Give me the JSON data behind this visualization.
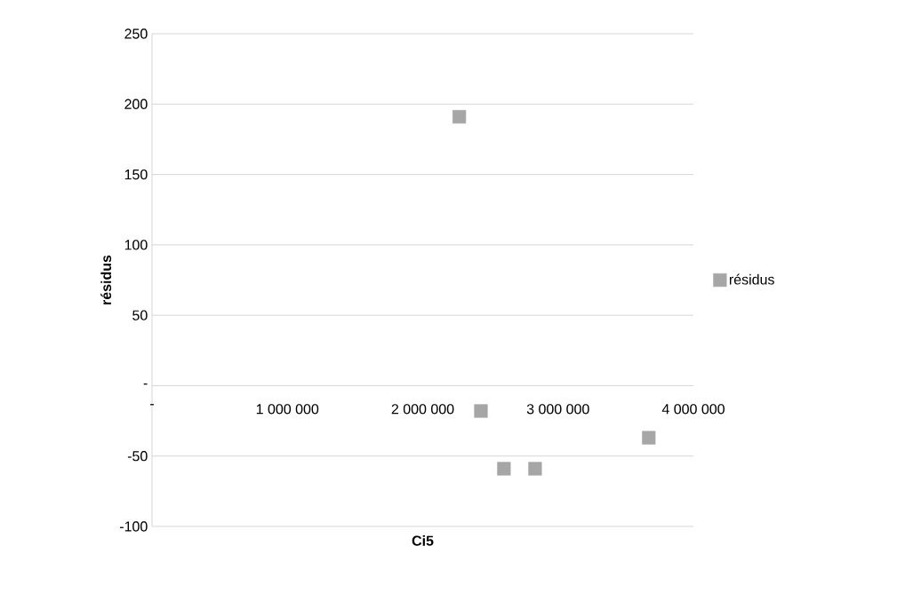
{
  "chart_data": {
    "type": "scatter",
    "xlabel": "Ci5",
    "ylabel": "résidus",
    "x": [
      2270000,
      2430000,
      2600000,
      2830000,
      3670000
    ],
    "series": [
      {
        "name": "résidus",
        "color": "#a6a6a6",
        "values": [
          191,
          -18,
          -59,
          -59,
          -37
        ]
      }
    ],
    "xlim": [
      0,
      4000000
    ],
    "xticks": [
      {
        "value": 0,
        "label": "-"
      },
      {
        "value": 1000000,
        "label": "1 000 000"
      },
      {
        "value": 2000000,
        "label": "2 000 000"
      },
      {
        "value": 3000000,
        "label": "3 000 000"
      },
      {
        "value": 4000000,
        "label": "4 000 000"
      }
    ],
    "ylim": [
      -100,
      250
    ],
    "yticks": [
      -100,
      -50,
      {
        "value": 0,
        "label": "-"
      },
      50,
      100,
      150,
      200,
      250
    ],
    "grid": "y",
    "legend": "right",
    "marker": "square"
  }
}
